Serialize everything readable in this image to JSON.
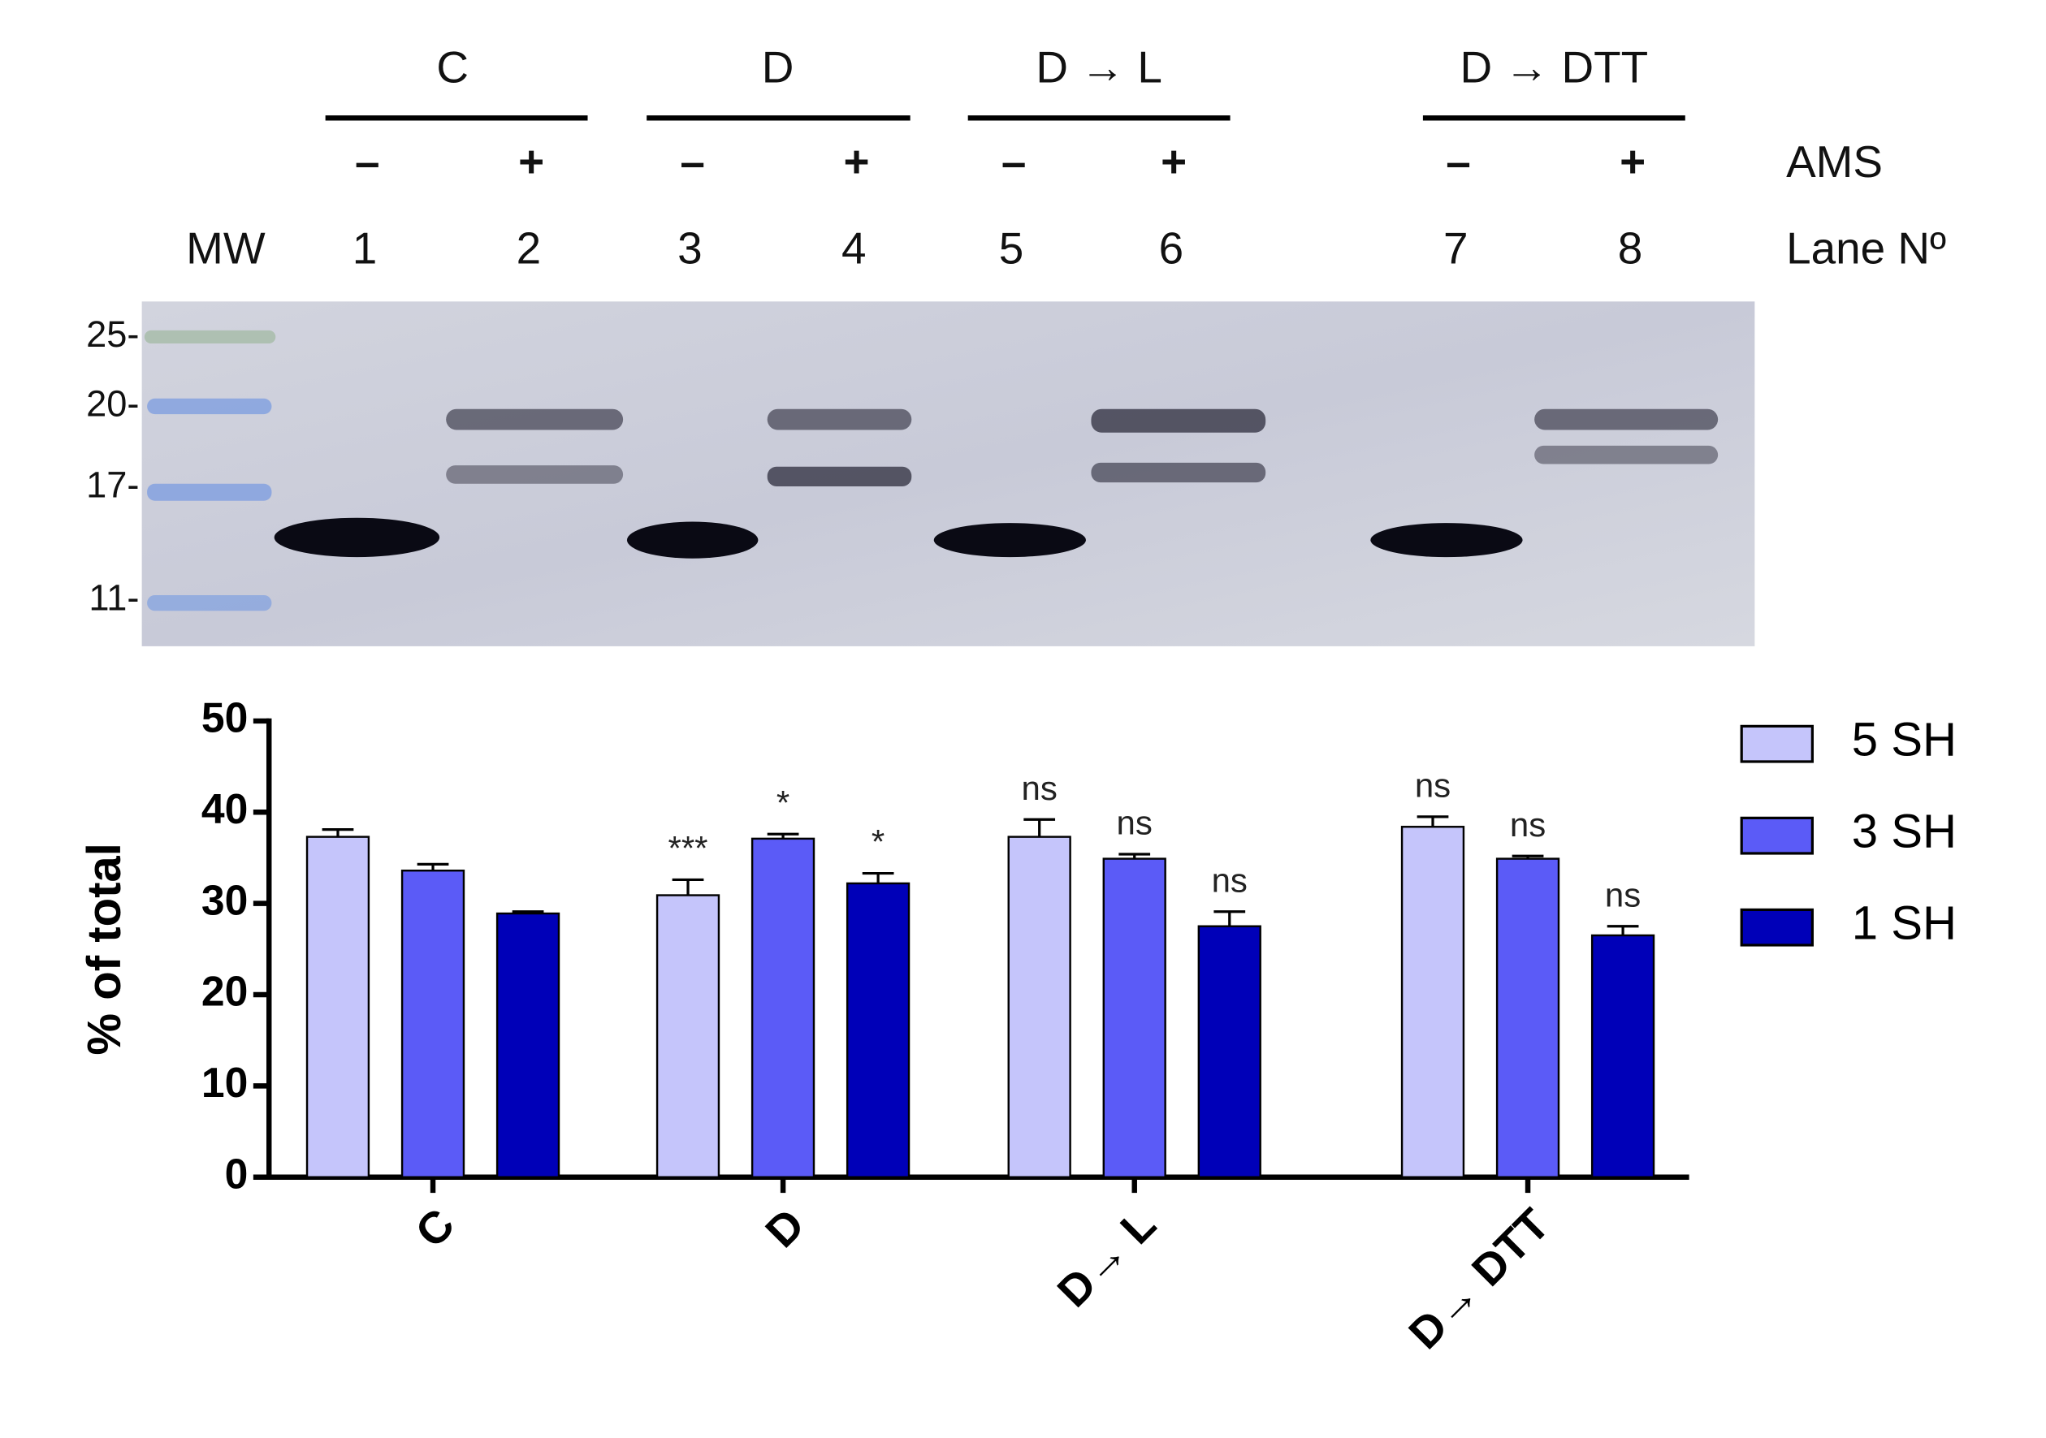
{
  "gel": {
    "groups": [
      "C",
      "D",
      "D → L",
      "D → DTT"
    ],
    "ams_signs": [
      "–",
      "+",
      "–",
      "+",
      "–",
      "+",
      "–",
      "+"
    ],
    "ams_label": "AMS",
    "mw_label": "MW",
    "lanes": [
      "1",
      "2",
      "3",
      "4",
      "5",
      "6",
      "7",
      "8"
    ],
    "lane_label": "Lane Nº",
    "mw_markers": [
      "25-",
      "20-",
      "17-",
      "11-"
    ]
  },
  "chart_data": {
    "type": "bar",
    "ylabel": "% of total",
    "categories": [
      "C",
      "D",
      "D→ L",
      "D→ DTT"
    ],
    "series": [
      {
        "name": "5 SH",
        "color": "#c5c5fb",
        "values": [
          37.3,
          30.9,
          37.3,
          38.4
        ],
        "errors": [
          0.8,
          1.7,
          1.9,
          1.1
        ],
        "annotations": [
          null,
          "***",
          "ns",
          "ns"
        ]
      },
      {
        "name": "3 SH",
        "color": "#5b5bf7",
        "values": [
          33.6,
          37.1,
          34.9,
          34.9
        ],
        "errors": [
          0.7,
          0.5,
          0.5,
          0.3
        ],
        "annotations": [
          null,
          "*",
          "ns",
          "ns"
        ]
      },
      {
        "name": "1 SH",
        "color": "#0000b8",
        "values": [
          28.9,
          32.2,
          27.5,
          26.5
        ],
        "errors": [
          0.2,
          1.1,
          1.6,
          1.0
        ],
        "annotations": [
          null,
          "*",
          "ns",
          "ns"
        ]
      }
    ],
    "ylim": [
      0,
      50
    ],
    "yticks": [
      0,
      10,
      20,
      30,
      40,
      50
    ],
    "legend": "right"
  }
}
